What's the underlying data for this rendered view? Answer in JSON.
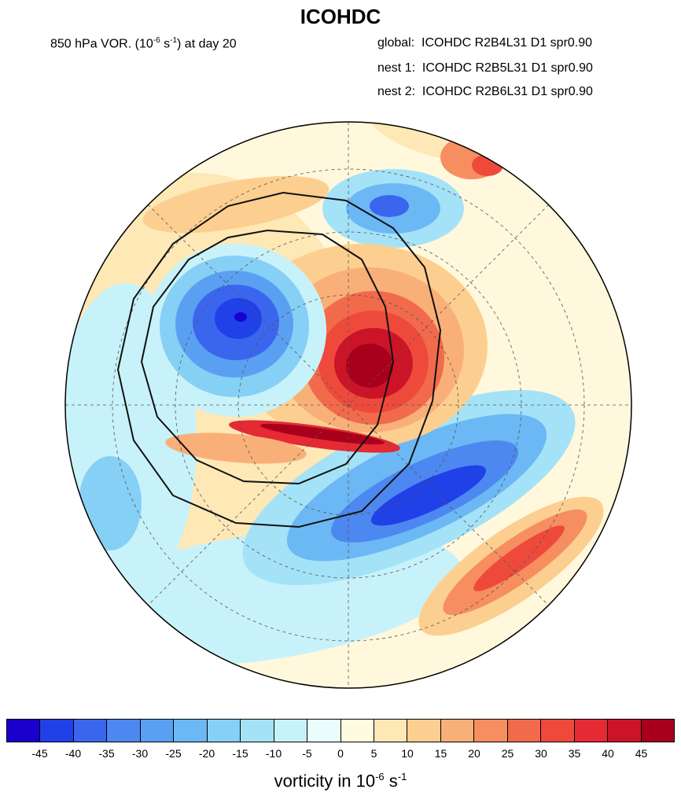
{
  "title": "ICOHDC",
  "field_label": {
    "prefix": "850 hPa VOR. (10",
    "exp": "-6",
    "mid": " s",
    "exp2": "-1",
    "suffix": ") at day 20"
  },
  "grids": [
    {
      "label": "global:",
      "value": "ICOHDC R2B4L31 D1 spr0.90"
    },
    {
      "label": "nest 1:",
      "value": "ICOHDC R2B5L31 D1 spr0.90"
    },
    {
      "label": "nest 2:",
      "value": "ICOHDC R2B6L31 D1 spr0.90"
    }
  ],
  "colorbar": {
    "colors": [
      "#1a00cc",
      "#2040e8",
      "#3a66ee",
      "#4c88f0",
      "#5aa0f2",
      "#6cb8f4",
      "#86d0f6",
      "#a4e2f8",
      "#c8f2fa",
      "#eafcfc",
      "#fffbe0",
      "#fde8b6",
      "#fccf90",
      "#f9b078",
      "#f68e60",
      "#f26a4c",
      "#ee4a3c",
      "#e52a34",
      "#cc1428",
      "#a8001c"
    ],
    "ticks": [
      "-45",
      "-40",
      "-35",
      "-30",
      "-25",
      "-20",
      "-15",
      "-10",
      "-5",
      "0",
      "5",
      "10",
      "15",
      "20",
      "25",
      "30",
      "35",
      "40",
      "45"
    ]
  },
  "units": {
    "prefix": "vorticity in 10",
    "exp": "-6",
    "mid": " s",
    "exp2": "-1"
  }
}
